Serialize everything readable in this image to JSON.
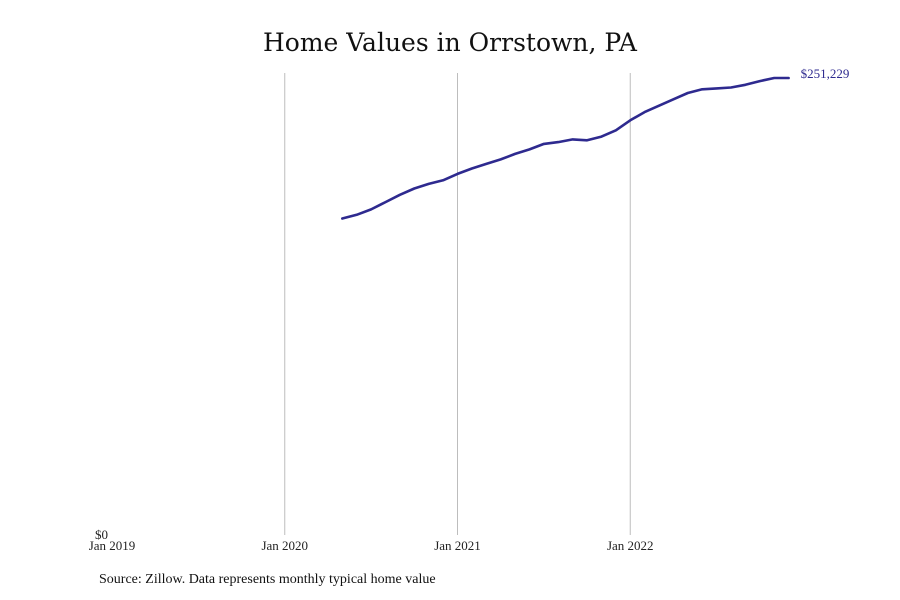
{
  "chart_data": {
    "type": "line",
    "title": "Home Values in Orrstown, PA",
    "xlabel": "",
    "ylabel": "",
    "x_ticks": [
      "Jan 2019",
      "Jan 2020",
      "Jan 2021",
      "Jan 2022"
    ],
    "y_ticks": [
      "$0"
    ],
    "ylim": [
      0,
      251229
    ],
    "xlim": [
      "2019-01",
      "2023-01"
    ],
    "grid": "vertical",
    "line_color": "#2e2a8f",
    "end_label": "$251,229",
    "series": [
      {
        "x": [
          "2020-05",
          "2020-06",
          "2020-07",
          "2020-08",
          "2020-09",
          "2020-10",
          "2020-11",
          "2020-12",
          "2021-01",
          "2021-02",
          "2021-03",
          "2021-04",
          "2021-05",
          "2021-06",
          "2021-07",
          "2021-08",
          "2021-09",
          "2021-10",
          "2021-11",
          "2021-12",
          "2022-01",
          "2022-02",
          "2022-03",
          "2022-04",
          "2022-05",
          "2022-06",
          "2022-07",
          "2022-08",
          "2022-09",
          "2022-10",
          "2022-11",
          "2022-12"
        ],
        "values": [
          174000,
          176000,
          179000,
          183000,
          187000,
          190500,
          193000,
          195000,
          198500,
          201500,
          204000,
          206500,
          209500,
          212000,
          215000,
          216000,
          217500,
          217000,
          219000,
          222500,
          228000,
          232500,
          236000,
          239500,
          243000,
          245000,
          245500,
          246000,
          247500,
          249500,
          251229,
          251229
        ]
      }
    ]
  },
  "source_text": "Source: Zillow. Data represents monthly typical home value"
}
